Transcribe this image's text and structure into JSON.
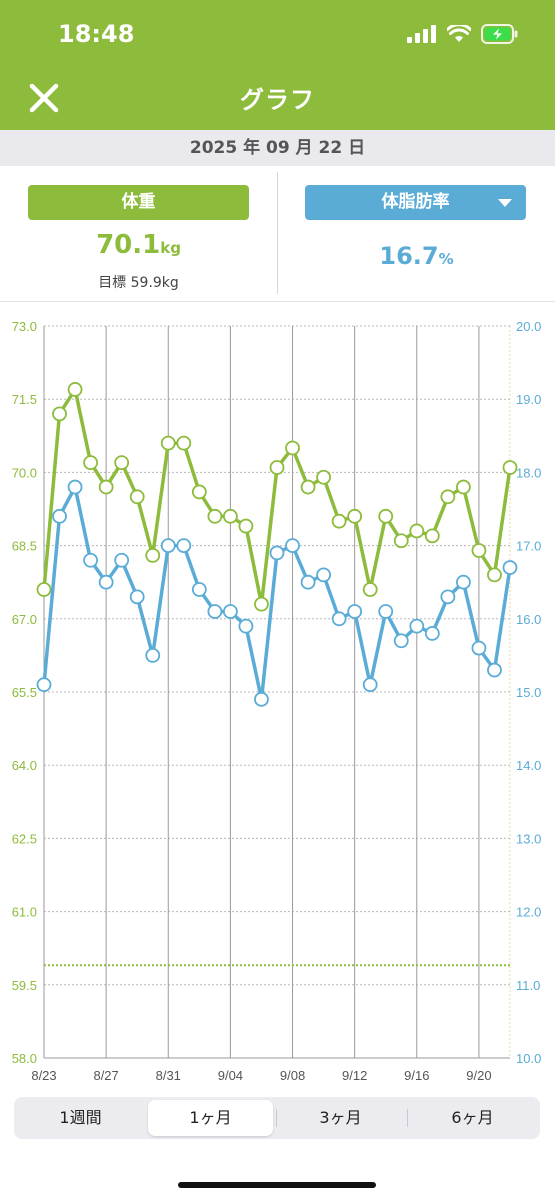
{
  "status": {
    "time": "18:48"
  },
  "header": {
    "title": "グラフ"
  },
  "date": "2025 年 09 月 22 日",
  "weight_panel": {
    "label": "体重",
    "value": "70.1",
    "unit": "kg",
    "goal": "目標 59.9kg"
  },
  "fat_panel": {
    "label": "体脂肪率",
    "value": "16.7",
    "unit": "%"
  },
  "colors": {
    "green": "#8dbb3c",
    "blue": "#5aacd6"
  },
  "tabs": [
    {
      "label": "1週間",
      "active": false
    },
    {
      "label": "1ヶ月",
      "active": true
    },
    {
      "label": "3ヶ月",
      "active": false
    },
    {
      "label": "6ヶ月",
      "active": false
    }
  ],
  "chart_data": {
    "type": "line",
    "y_left_ticks": [
      "73.0",
      "71.5",
      "70.0",
      "68.5",
      "67.0",
      "65.5",
      "64.0",
      "62.5",
      "61.0",
      "59.5",
      "58.0"
    ],
    "y_right_ticks": [
      "20.0",
      "19.0",
      "18.0",
      "17.0",
      "16.0",
      "15.0",
      "14.0",
      "13.0",
      "12.0",
      "11.0",
      "10.0"
    ],
    "y_left_range": [
      58.0,
      73.0
    ],
    "y_right_range": [
      10.0,
      20.0
    ],
    "x_tick_labels": [
      "8/23",
      "8/27",
      "8/31",
      "9/04",
      "9/08",
      "9/12",
      "9/16",
      "9/20"
    ],
    "x_range": [
      "8/23",
      "9/22"
    ],
    "goal_weight": 59.9,
    "series": [
      {
        "axis": "left",
        "color": "#8dbb3c",
        "points": [
          [
            "8/23",
            67.6
          ],
          [
            "8/24",
            71.2
          ],
          [
            "8/25",
            71.7
          ],
          [
            "8/26",
            70.2
          ],
          [
            "8/27",
            69.7
          ],
          [
            "8/28",
            70.2
          ],
          [
            "8/29",
            69.5
          ],
          [
            "8/30",
            68.3
          ],
          [
            "8/31",
            70.6
          ],
          [
            "9/01",
            70.6
          ],
          [
            "9/02",
            69.6
          ],
          [
            "9/03",
            69.1
          ],
          [
            "9/04",
            69.1
          ],
          [
            "9/05",
            68.9
          ],
          [
            "9/06",
            67.3
          ],
          [
            "9/07",
            70.1
          ],
          [
            "9/08",
            70.5
          ],
          [
            "9/09",
            69.7
          ],
          [
            "9/10",
            69.9
          ],
          [
            "9/11",
            69.0
          ],
          [
            "9/12",
            69.1
          ],
          [
            "9/13",
            67.6
          ],
          [
            "9/14",
            69.1
          ],
          [
            "9/15",
            68.6
          ],
          [
            "9/16",
            68.8
          ],
          [
            "9/17",
            68.7
          ],
          [
            "9/18",
            69.5
          ],
          [
            "9/19",
            69.7
          ],
          [
            "9/20",
            68.4
          ],
          [
            "9/21",
            67.9
          ],
          [
            "9/22",
            70.1
          ]
        ]
      },
      {
        "axis": "right",
        "color": "#5aacd6",
        "points": [
          [
            "8/23",
            15.1
          ],
          [
            "8/24",
            17.4
          ],
          [
            "8/25",
            17.8
          ],
          [
            "8/26",
            16.8
          ],
          [
            "8/27",
            16.5
          ],
          [
            "8/28",
            16.8
          ],
          [
            "8/29",
            16.3
          ],
          [
            "8/30",
            15.5
          ],
          [
            "8/31",
            17.0
          ],
          [
            "9/01",
            17.0
          ],
          [
            "9/02",
            16.4
          ],
          [
            "9/03",
            16.1
          ],
          [
            "9/04",
            16.1
          ],
          [
            "9/05",
            15.9
          ],
          [
            "9/06",
            14.9
          ],
          [
            "9/07",
            16.9
          ],
          [
            "9/08",
            17.0
          ],
          [
            "9/09",
            16.5
          ],
          [
            "9/10",
            16.6
          ],
          [
            "9/11",
            16.0
          ],
          [
            "9/12",
            16.1
          ],
          [
            "9/13",
            15.1
          ],
          [
            "9/14",
            16.1
          ],
          [
            "9/15",
            15.7
          ],
          [
            "9/16",
            15.9
          ],
          [
            "9/17",
            15.8
          ],
          [
            "9/18",
            16.3
          ],
          [
            "9/19",
            16.5
          ],
          [
            "9/20",
            15.6
          ],
          [
            "9/21",
            15.3
          ],
          [
            "9/22",
            16.7
          ]
        ]
      }
    ]
  }
}
